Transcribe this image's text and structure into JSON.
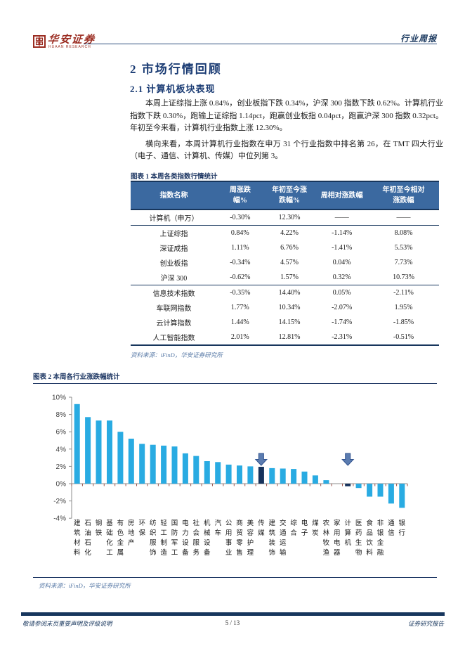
{
  "header": {
    "brand_cn": "华安证券",
    "brand_en": "HUAAN RESEARCH",
    "report_type": "行业周报"
  },
  "sections": {
    "h2": "2 市场行情回顾",
    "h3": "2.1 计算机板块表现",
    "paragraph1": "本周上证综指上涨 0.84%，创业板指下跌 0.34%，沪深 300 指数下跌 0.62%。计算机行业指数下跌 0.30%，跑输上证综指 1.14pct，跑赢创业板指 0.04pct，跑赢沪深 300 指数 0.32pct。年初至今来看，计算机行业指数上涨 12.30%。",
    "paragraph2": "横向来看，本周计算机行业指数在申万 31 个行业指数中排名第 26，在 TMT 四大行业（电子、通信、计算机、传媒）中位列第 3。"
  },
  "figure1": {
    "caption": "图表 1 本周各类指数行情统计",
    "source": "资料来源：iFinD，华安证券研究所",
    "table": {
      "headers": [
        "指数名称",
        "周涨跌\n幅%",
        "年初至今涨\n跌幅%",
        "周相对涨跌幅",
        "年初至今相对\n涨跌幅"
      ],
      "rows": [
        [
          "计算机（申万）",
          "-0.30%",
          "12.30%",
          "——",
          "——"
        ],
        [
          "上证综指",
          "0.84%",
          "4.22%",
          "-1.14%",
          "8.08%"
        ],
        [
          "深证成指",
          "1.11%",
          "6.76%",
          "-1.41%",
          "5.53%"
        ],
        [
          "创业板指",
          "-0.34%",
          "4.57%",
          "0.04%",
          "7.73%"
        ],
        [
          "沪深 300",
          "-0.62%",
          "1.57%",
          "0.32%",
          "10.73%"
        ],
        [
          "信息技术指数",
          "-0.35%",
          "14.40%",
          "0.05%",
          "-2.11%"
        ],
        [
          "车联网指数",
          "1.77%",
          "10.34%",
          "-2.07%",
          "1.95%"
        ],
        [
          "云计算指数",
          "1.44%",
          "14.15%",
          "-1.74%",
          "-1.85%"
        ],
        [
          "人工智能指数",
          "2.01%",
          "12.81%",
          "-2.31%",
          "-0.51%"
        ]
      ],
      "thick_separator_after_rows": [
        0,
        4
      ]
    }
  },
  "figure2": {
    "caption": "图表 2 本周各行业涨跌幅统计",
    "source": "资料来源：iFinD，华安证券研究所"
  },
  "chart_data": {
    "type": "bar",
    "title": "图表 2 本周各行业涨跌幅统计",
    "xlabel": "",
    "ylabel": "",
    "ylim": [
      -4,
      10
    ],
    "ytick_step": 2,
    "ytick_format": "percent",
    "grid": false,
    "legend": "none",
    "categories": [
      "建筑材料",
      "石油石化",
      "钢铁",
      "基础化工",
      "有色金属",
      "房地产",
      "环保",
      "纺织服饰",
      "轻工制造",
      "国防军工",
      "电力设备",
      "社会服务",
      "机械设备",
      "汽车",
      "公用事业",
      "商贸零售",
      "美容护理",
      "传媒",
      "建筑装饰",
      "交通运输",
      "综合",
      "电子",
      "煤炭",
      "农林牧渔",
      "家用电器",
      "计算机",
      "医药生物",
      "食品饮料",
      "非银金融",
      "通信",
      "银行"
    ],
    "values": [
      9.2,
      7.7,
      7.3,
      7.3,
      6.0,
      5.2,
      4.6,
      4.5,
      4.4,
      4.3,
      3.5,
      3.2,
      2.6,
      2.5,
      2.2,
      2.1,
      2.0,
      1.95,
      1.8,
      1.75,
      1.7,
      1.4,
      0.95,
      0.4,
      0.0,
      -0.3,
      -0.5,
      -1.5,
      -1.5,
      -2.3,
      -2.8
    ],
    "highlight_indices": [
      17,
      25
    ],
    "colors": {
      "bar": "#29abe2",
      "highlight": "#16325c",
      "arrow_fill": "#5b7cb0",
      "arrow_stroke": "#31538f",
      "axis": "#8c8c8c",
      "tick": "#9b5148"
    }
  },
  "footer": {
    "left": "敬请参阅末页重要声明及评级说明",
    "page": "5 / 13",
    "right": "证券研究报告"
  },
  "colors": {
    "navy": "#17365d",
    "heading_blue": "#1b3c74",
    "caption_blue": "#1f3864",
    "source_blue": "#5b7ca8",
    "brand_red": "#9b2d22",
    "table_header_bg": "#3b69a0"
  }
}
